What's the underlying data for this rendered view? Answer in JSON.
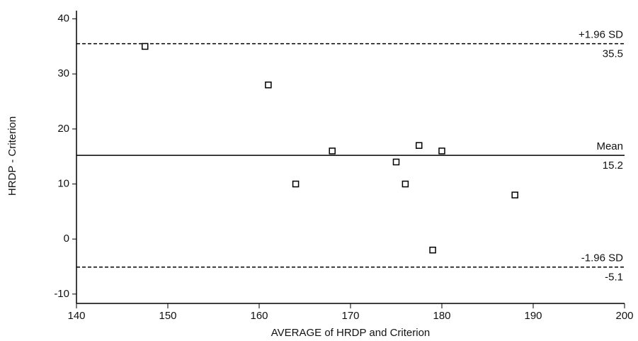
{
  "chart_data": {
    "type": "scatter",
    "xlabel": "AVERAGE of HRDP and Criterion",
    "ylabel": "HRDP - Criterion",
    "x": [
      147.5,
      161,
      164,
      168,
      175,
      176,
      177.5,
      180,
      179,
      188
    ],
    "values": [
      35,
      28,
      10,
      16,
      14,
      10,
      17,
      16,
      -2,
      8
    ],
    "color": "#000000",
    "xlim": [
      140,
      200
    ],
    "xticks": [
      140,
      150,
      160,
      170,
      180,
      190,
      200
    ],
    "ylim": [
      -11.7,
      41.5
    ],
    "yticks": [
      -10,
      0,
      10,
      20,
      30,
      40
    ],
    "reference_lines": [
      {
        "name": "+1.96 SD",
        "value": 35.5,
        "style": "dashed"
      },
      {
        "name": "Mean",
        "value": 15.2,
        "style": "solid"
      },
      {
        "name": "-1.96 SD",
        "value": -5.1,
        "style": "dashed"
      }
    ]
  }
}
